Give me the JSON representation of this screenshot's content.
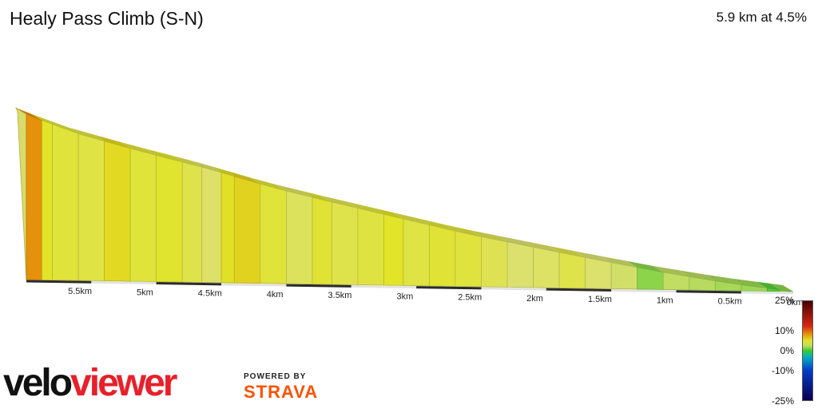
{
  "header": {
    "title": "Healy Pass Climb (S-N)",
    "summary": "5.9 km at 4.5%"
  },
  "chart_data": {
    "type": "area",
    "title": "Healy Pass Climb (S-N)",
    "subtitle": "5.9 km at 4.5%",
    "x_ticks": [
      "5.5km",
      "5km",
      "4.5km",
      "4km",
      "3.5km",
      "3km",
      "2.5km",
      "2km",
      "1.5km",
      "1km",
      "0.5km",
      "0km"
    ],
    "x_tick_values": [
      5.5,
      5.0,
      4.5,
      4.0,
      3.5,
      3.0,
      2.5,
      2.0,
      1.5,
      1.0,
      0.5,
      0.0
    ],
    "xlim": [
      5.9,
      0
    ],
    "unit_height": {
      "distance_km": [
        5.9,
        5.78,
        5.5,
        5.0,
        4.5,
        4.0,
        3.5,
        3.0,
        2.5,
        2.0,
        1.5,
        1.0,
        0.5,
        0.2,
        0.0
      ],
      "relative_elevation": [
        221,
        213,
        196,
        173,
        152,
        128,
        108,
        89,
        70,
        54,
        38,
        23,
        10,
        4,
        0
      ]
    },
    "segments": [
      {
        "from": 5.9,
        "to": 5.78,
        "grade": 8.5
      },
      {
        "from": 5.78,
        "to": 5.7,
        "grade": 5.0
      },
      {
        "from": 5.7,
        "to": 5.5,
        "grade": 4.5
      },
      {
        "from": 5.5,
        "to": 5.3,
        "grade": 4.2
      },
      {
        "from": 5.3,
        "to": 5.1,
        "grade": 5.5
      },
      {
        "from": 5.1,
        "to": 4.9,
        "grade": 4.5
      },
      {
        "from": 4.9,
        "to": 4.7,
        "grade": 4.8
      },
      {
        "from": 4.7,
        "to": 4.55,
        "grade": 4.0
      },
      {
        "from": 4.55,
        "to": 4.4,
        "grade": 3.2
      },
      {
        "from": 4.4,
        "to": 4.3,
        "grade": 5.2
      },
      {
        "from": 4.3,
        "to": 4.1,
        "grade": 5.8
      },
      {
        "from": 4.1,
        "to": 3.9,
        "grade": 4.5
      },
      {
        "from": 3.9,
        "to": 3.7,
        "grade": 3.5
      },
      {
        "from": 3.7,
        "to": 3.55,
        "grade": 4.6
      },
      {
        "from": 3.55,
        "to": 3.35,
        "grade": 4.0
      },
      {
        "from": 3.35,
        "to": 3.15,
        "grade": 4.3
      },
      {
        "from": 3.15,
        "to": 3.0,
        "grade": 5.0
      },
      {
        "from": 3.0,
        "to": 2.8,
        "grade": 4.2
      },
      {
        "from": 2.8,
        "to": 2.6,
        "grade": 4.6
      },
      {
        "from": 2.6,
        "to": 2.4,
        "grade": 4.4
      },
      {
        "from": 2.4,
        "to": 2.2,
        "grade": 3.8
      },
      {
        "from": 2.2,
        "to": 2.0,
        "grade": 3.0
      },
      {
        "from": 2.0,
        "to": 1.8,
        "grade": 3.3
      },
      {
        "from": 1.8,
        "to": 1.6,
        "grade": 4.0
      },
      {
        "from": 1.6,
        "to": 1.4,
        "grade": 3.0
      },
      {
        "from": 1.4,
        "to": 1.2,
        "grade": 2.8
      },
      {
        "from": 1.2,
        "to": 1.0,
        "grade": 1.5
      },
      {
        "from": 1.0,
        "to": 0.8,
        "grade": 2.5
      },
      {
        "from": 0.8,
        "to": 0.6,
        "grade": 2.3
      },
      {
        "from": 0.6,
        "to": 0.4,
        "grade": 2.0
      },
      {
        "from": 0.4,
        "to": 0.2,
        "grade": 1.8
      },
      {
        "from": 0.2,
        "to": 0.1,
        "grade": 0.5
      },
      {
        "from": 0.1,
        "to": 0.0,
        "grade": 1.5
      }
    ],
    "legend": {
      "labels": [
        "25%",
        "10%",
        "0%",
        "-10%",
        "-25%"
      ],
      "values": [
        25,
        10,
        0,
        -10,
        -25
      ],
      "range": [
        -25,
        25
      ]
    },
    "grid": false
  },
  "branding": {
    "logo_velo": "velo",
    "logo_viewer": "viewer",
    "powered_by": "POWERED BY",
    "strava": "STRAVA"
  },
  "colors": {
    "axis_bar": "#2b2b2b",
    "axis_gap": "#e3e3e3",
    "logo_red": "#e8202a",
    "strava_orange": "#fc5200"
  }
}
